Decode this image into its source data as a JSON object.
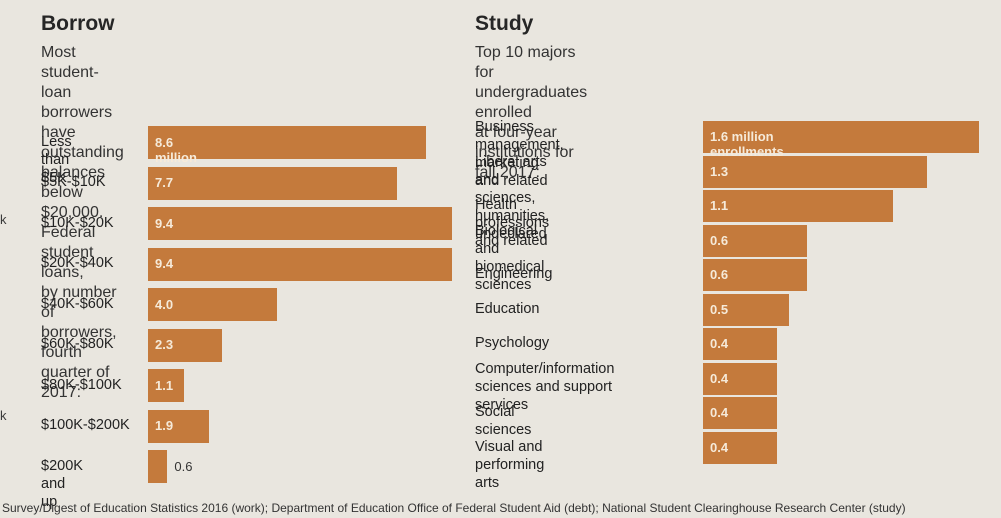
{
  "chart_data": [
    {
      "type": "bar",
      "orientation": "horizontal",
      "title": "Borrow",
      "subtitle": "Most student-loan borrowers have outstanding\nbalances below $20,000. Federal student loans,\nby number of borrowers, fourth quarter of 2017:",
      "categories": [
        "Less than $5K",
        "$5K-$10K",
        "$10K-$20K",
        "$20K-$40K",
        "$40K-$60K",
        "$60K-$80K",
        "$80K-$100K",
        "$100K-$200K",
        "$200K and up"
      ],
      "values": [
        8.6,
        7.7,
        9.4,
        9.4,
        4.0,
        2.3,
        1.1,
        1.9,
        0.6
      ],
      "value_labels": [
        "8.6 million",
        "7.7",
        "9.4",
        "9.4",
        "4.0",
        "2.3",
        "1.1",
        "1.9",
        "0.6"
      ],
      "unit": "million",
      "color": "#c47a3c"
    },
    {
      "type": "bar",
      "orientation": "horizontal",
      "title": "Study",
      "subtitle": "Top 10 majors for undergraduates enrolled\nat four-year institutions for fall 2017:",
      "categories": [
        "Business management,\nmarketing and related",
        "Liberal arts and sciences,\nhumanities, undeclared",
        "Health professions and related",
        "Biological and\nbiomedical sciences",
        "Engineering",
        "Education",
        "Psychology",
        "Computer/information\nsciences and support services",
        "Social sciences",
        "Visual and performing arts"
      ],
      "values": [
        1.6,
        1.3,
        1.1,
        0.6,
        0.6,
        0.5,
        0.4,
        0.4,
        0.4,
        0.4
      ],
      "value_labels": [
        "1.6 million enrollments",
        "1.3",
        "1.1",
        "0.6",
        "0.6",
        "0.5",
        "0.4",
        "0.4",
        "0.4",
        "0.4"
      ],
      "unit": "million enrollments",
      "color": "#c47a3c"
    }
  ],
  "source": "Survey/Digest of Education Statistics 2016 (work); Department of Education Office of Federal Student Aid (debt); National Student Clearinghouse Research Center (study)",
  "edge_marks": [
    "k",
    "k"
  ]
}
